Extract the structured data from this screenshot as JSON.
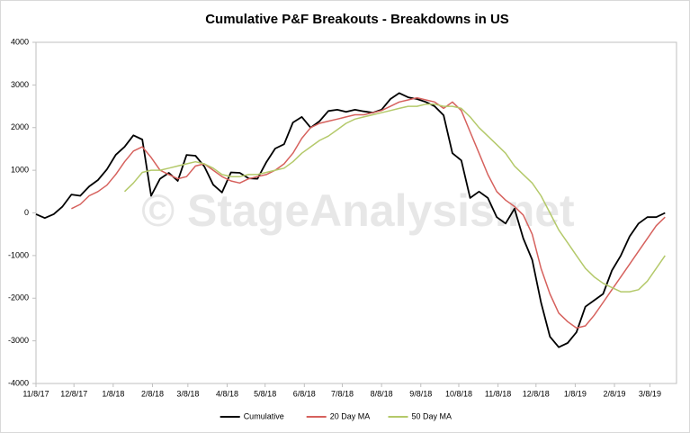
{
  "chart_data": {
    "type": "line",
    "title": "Cumulative P&F Breakouts - Breakdowns in US",
    "watermark": "© StageAnalysis.net",
    "x": [
      "11/8/17",
      "11/15/17",
      "11/22/17",
      "11/29/17",
      "12/6/17",
      "12/13/17",
      "12/20/17",
      "12/27/17",
      "1/3/18",
      "1/10/18",
      "1/17/18",
      "1/24/18",
      "1/31/18",
      "2/7/18",
      "2/14/18",
      "2/21/18",
      "2/28/18",
      "3/7/18",
      "3/14/18",
      "3/21/18",
      "3/28/18",
      "4/4/18",
      "4/11/18",
      "4/18/18",
      "4/25/18",
      "5/2/18",
      "5/9/18",
      "5/16/18",
      "5/23/18",
      "5/30/18",
      "6/6/18",
      "6/13/18",
      "6/20/18",
      "6/27/18",
      "7/4/18",
      "7/11/18",
      "7/18/18",
      "7/25/18",
      "8/1/18",
      "8/8/18",
      "8/15/18",
      "8/22/18",
      "8/29/18",
      "9/5/18",
      "9/12/18",
      "9/19/18",
      "9/26/18",
      "10/3/18",
      "10/10/18",
      "10/17/18",
      "10/24/18",
      "10/31/18",
      "11/7/18",
      "11/14/18",
      "11/21/18",
      "11/28/18",
      "12/5/18",
      "12/12/18",
      "12/19/18",
      "12/26/18",
      "1/2/19",
      "1/9/19",
      "1/16/19",
      "1/23/19",
      "1/30/19",
      "2/6/19",
      "2/13/19",
      "2/20/19",
      "2/27/19",
      "3/6/19",
      "3/13/19",
      "3/20/19"
    ],
    "series": [
      {
        "name": "Cumulative",
        "color": "#000000",
        "values": [
          -30,
          -120,
          -30,
          150,
          430,
          400,
          620,
          770,
          1020,
          1360,
          1550,
          1820,
          1720,
          400,
          800,
          940,
          750,
          1360,
          1340,
          1090,
          660,
          480,
          950,
          940,
          810,
          800,
          1190,
          1510,
          1610,
          2120,
          2250,
          2000,
          2150,
          2390,
          2420,
          2370,
          2420,
          2380,
          2350,
          2420,
          2670,
          2810,
          2710,
          2670,
          2600,
          2500,
          2290,
          1400,
          1230,
          350,
          500,
          350,
          -100,
          -250,
          100,
          -600,
          -1100,
          -2100,
          -2900,
          -3150,
          -3050,
          -2800,
          -2200,
          -2050,
          -1900,
          -1350,
          -1000,
          -550,
          -250,
          -100,
          -100,
          0
        ]
      },
      {
        "name": "20 Day MA",
        "color": "#d6615d",
        "values": [
          null,
          null,
          null,
          null,
          100,
          200,
          400,
          500,
          650,
          900,
          1200,
          1450,
          1550,
          1300,
          1000,
          900,
          800,
          850,
          1100,
          1150,
          1000,
          850,
          750,
          700,
          800,
          850,
          900,
          1000,
          1150,
          1400,
          1750,
          2000,
          2100,
          2150,
          2200,
          2250,
          2300,
          2300,
          2350,
          2400,
          2500,
          2600,
          2650,
          2700,
          2650,
          2600,
          2450,
          2600,
          2400,
          1900,
          1400,
          900,
          500,
          300,
          150,
          -50,
          -500,
          -1300,
          -1900,
          -2350,
          -2550,
          -2700,
          -2650,
          -2400,
          -2100,
          -1800,
          -1500,
          -1200,
          -900,
          -600,
          -300,
          -100
        ]
      },
      {
        "name": "50 Day MA",
        "color": "#b4c96a",
        "values": [
          null,
          null,
          null,
          null,
          null,
          null,
          null,
          null,
          null,
          null,
          500,
          700,
          950,
          1000,
          1000,
          1050,
          1100,
          1150,
          1200,
          1150,
          1050,
          900,
          850,
          850,
          900,
          900,
          950,
          1000,
          1050,
          1200,
          1400,
          1550,
          1700,
          1800,
          1950,
          2100,
          2200,
          2250,
          2300,
          2350,
          2400,
          2450,
          2500,
          2500,
          2550,
          2550,
          2500,
          2500,
          2450,
          2250,
          2000,
          1800,
          1600,
          1400,
          1100,
          900,
          700,
          400,
          0,
          -400,
          -700,
          -1000,
          -1300,
          -1500,
          -1650,
          -1750,
          -1850,
          -1850,
          -1800,
          -1600,
          -1300,
          -1000
        ]
      }
    ],
    "xlim": [
      "11/8/17",
      "3/29/19"
    ],
    "xticks": [
      "11/8/17",
      "12/8/17",
      "1/8/18",
      "2/8/18",
      "3/8/18",
      "4/8/18",
      "5/8/18",
      "6/8/18",
      "7/8/18",
      "8/8/18",
      "9/8/18",
      "10/8/18",
      "11/8/18",
      "12/8/18",
      "1/8/19",
      "2/8/19",
      "3/8/19"
    ],
    "ylim": [
      -4000,
      4000
    ],
    "yticks": [
      -4000,
      -3000,
      -2000,
      -1000,
      0,
      1000,
      2000,
      3000,
      4000
    ],
    "grid": false,
    "legend": "bottom"
  }
}
